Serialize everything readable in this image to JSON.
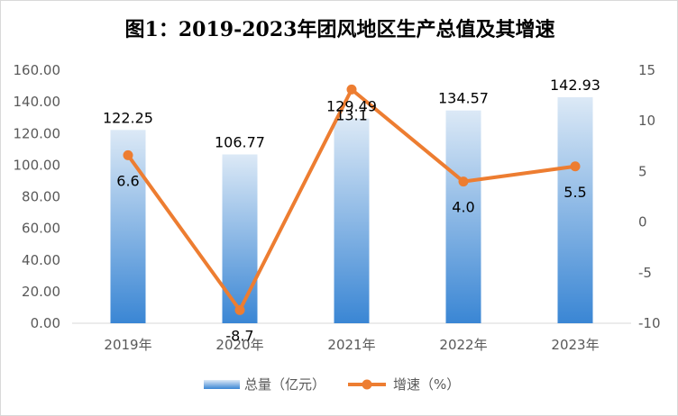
{
  "chart_data": {
    "type": "bar+line",
    "title": "图1：2019-2023年团风地区生产总值及其增速",
    "categories": [
      "2019年",
      "2020年",
      "2021年",
      "2022年",
      "2023年"
    ],
    "series": [
      {
        "name": "总量（亿元）",
        "type": "bar",
        "axis": "left",
        "values": [
          122.25,
          106.77,
          129.49,
          134.57,
          142.93
        ],
        "labels": [
          "122.25",
          "106.77",
          "129.49",
          "134.57",
          "142.93"
        ]
      },
      {
        "name": "增速（%）",
        "type": "line",
        "axis": "right",
        "values": [
          6.6,
          -8.7,
          13.1,
          4.0,
          5.5
        ],
        "labels": [
          "6.6",
          "-8.7",
          "13.1",
          "4.0",
          "5.5"
        ]
      }
    ],
    "y_left": {
      "min": 0,
      "max": 160,
      "ticks": [
        "0.00",
        "20.00",
        "40.00",
        "60.00",
        "80.00",
        "100.00",
        "120.00",
        "140.00",
        "160.00"
      ]
    },
    "y_right": {
      "min": -10,
      "max": 15,
      "ticks": [
        "-10",
        "-5",
        "0",
        "5",
        "10",
        "15"
      ]
    },
    "grid": false,
    "legend_position": "bottom",
    "colors": {
      "bar_top": "#dce9f6",
      "bar_bottom": "#3a86d4",
      "line": "#ed7d31",
      "axis": "#d9d9d9"
    }
  }
}
